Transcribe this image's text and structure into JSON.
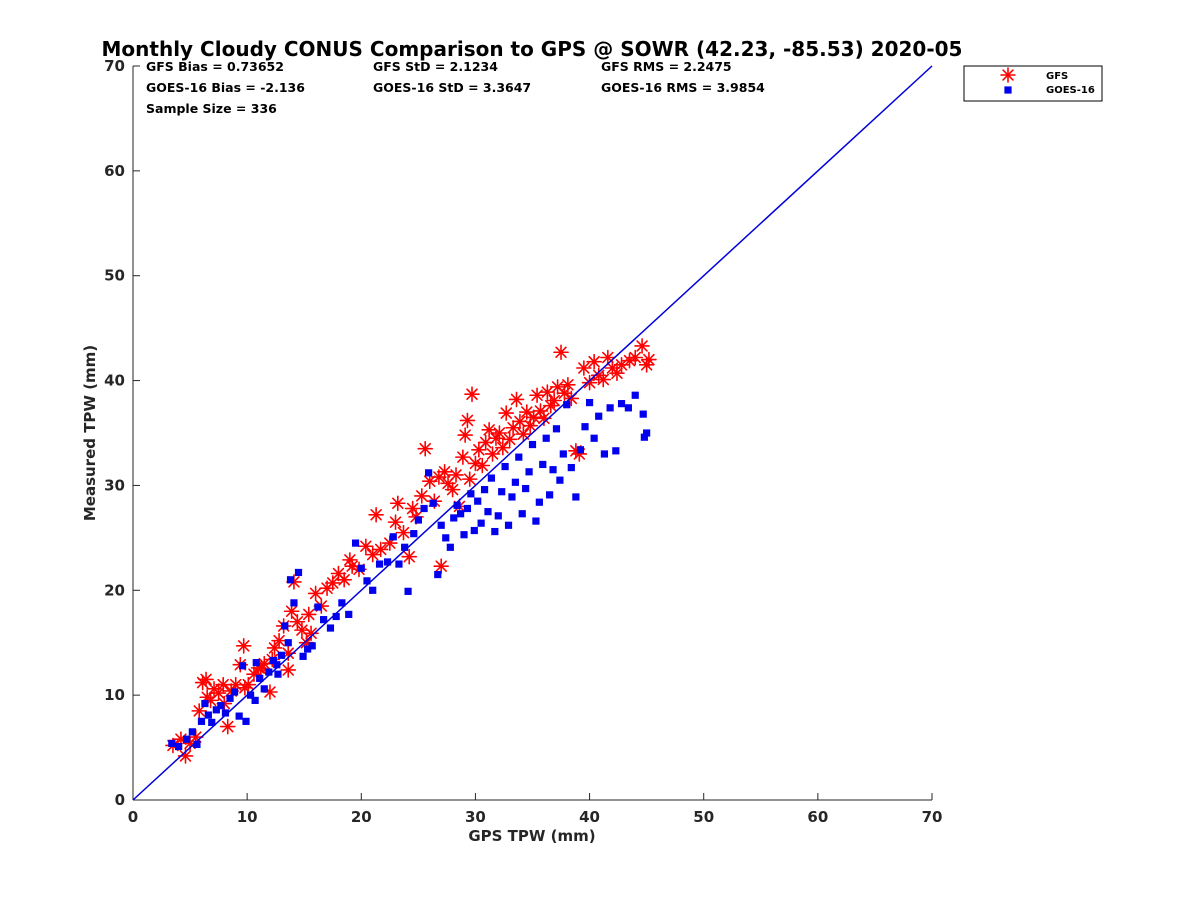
{
  "chart_data": {
    "type": "scatter",
    "title": "Monthly Cloudy CONUS Comparison to GPS @ SOWR (42.23, -85.53) 2020-05",
    "xlabel": "GPS TPW (mm)",
    "ylabel": "Measured TPW (mm)",
    "xlim": [
      0,
      70
    ],
    "ylim": [
      0,
      70
    ],
    "xticks": [
      "0",
      "10",
      "20",
      "30",
      "40",
      "50",
      "60",
      "70"
    ],
    "yticks": [
      "0",
      "10",
      "20",
      "30",
      "40",
      "50",
      "60",
      "70"
    ],
    "grid": false,
    "legend_position": "top-right, outside plot",
    "reference_line": {
      "x": [
        0,
        70
      ],
      "y": [
        0,
        70
      ],
      "color": "#0000dd"
    },
    "stats": {
      "gfs_bias": "GFS Bias = 0.73652",
      "gfs_std": "GFS StD = 2.1234",
      "gfs_rms": "GFS RMS = 2.2475",
      "goes_bias": "GOES-16 Bias = -2.136",
      "goes_std": "GOES-16 StD = 3.3647",
      "goes_rms": "GOES-16 RMS = 3.9854",
      "sample_size": "Sample Size = 336"
    },
    "series": [
      {
        "name": "GFS",
        "marker": "asterisk",
        "color": "#ff0000",
        "points": [
          [
            3.5,
            5.2
          ],
          [
            4.2,
            5.8
          ],
          [
            4.6,
            4.2
          ],
          [
            5.0,
            5.4
          ],
          [
            5.5,
            6.0
          ],
          [
            5.8,
            8.5
          ],
          [
            6.1,
            11.2
          ],
          [
            6.4,
            11.5
          ],
          [
            6.8,
            9.5
          ],
          [
            7.1,
            10.6
          ],
          [
            7.5,
            10.2
          ],
          [
            7.9,
            11.0
          ],
          [
            8.3,
            7.0
          ],
          [
            8.6,
            10.4
          ],
          [
            9.0,
            11.0
          ],
          [
            9.4,
            12.9
          ],
          [
            9.7,
            14.7
          ],
          [
            10.1,
            11.0
          ],
          [
            10.6,
            12.0
          ],
          [
            11.0,
            12.6
          ],
          [
            11.5,
            13.0
          ],
          [
            12.0,
            10.3
          ],
          [
            12.4,
            14.5
          ],
          [
            12.8,
            15.2
          ],
          [
            13.2,
            16.6
          ],
          [
            13.6,
            12.4
          ],
          [
            13.9,
            18.0
          ],
          [
            14.1,
            20.8
          ],
          [
            14.4,
            17.0
          ],
          [
            14.8,
            16.2
          ],
          [
            15.2,
            15.0
          ],
          [
            15.6,
            15.9
          ],
          [
            16.0,
            19.7
          ],
          [
            16.5,
            18.5
          ],
          [
            17.0,
            20.2
          ],
          [
            17.5,
            20.7
          ],
          [
            18.0,
            21.6
          ],
          [
            18.5,
            21.0
          ],
          [
            19.2,
            22.3
          ],
          [
            19.8,
            22.0
          ],
          [
            20.4,
            24.2
          ],
          [
            21.0,
            23.4
          ],
          [
            21.3,
            27.2
          ],
          [
            21.7,
            23.9
          ],
          [
            22.5,
            24.5
          ],
          [
            23.0,
            26.5
          ],
          [
            23.2,
            28.3
          ],
          [
            23.7,
            25.5
          ],
          [
            24.2,
            23.2
          ],
          [
            24.5,
            27.8
          ],
          [
            24.8,
            27.0
          ],
          [
            25.3,
            29.0
          ],
          [
            25.6,
            33.5
          ],
          [
            26.0,
            30.4
          ],
          [
            26.4,
            28.5
          ],
          [
            26.8,
            30.8
          ],
          [
            27.0,
            22.3
          ],
          [
            27.3,
            31.3
          ],
          [
            27.6,
            30.2
          ],
          [
            28.0,
            29.6
          ],
          [
            28.3,
            31.0
          ],
          [
            28.6,
            28.0
          ],
          [
            28.9,
            32.7
          ],
          [
            29.1,
            34.8
          ],
          [
            29.3,
            36.2
          ],
          [
            29.5,
            30.6
          ],
          [
            29.7,
            38.7
          ],
          [
            30.0,
            32.1
          ],
          [
            30.3,
            33.4
          ],
          [
            30.6,
            31.9
          ],
          [
            30.9,
            34.1
          ],
          [
            31.2,
            35.3
          ],
          [
            31.5,
            33.0
          ],
          [
            31.8,
            34.5
          ],
          [
            32.1,
            35.0
          ],
          [
            32.4,
            33.6
          ],
          [
            32.7,
            36.9
          ],
          [
            33.0,
            34.4
          ],
          [
            33.3,
            35.5
          ],
          [
            33.6,
            38.2
          ],
          [
            33.9,
            36.1
          ],
          [
            34.2,
            34.9
          ],
          [
            34.5,
            37.0
          ],
          [
            34.8,
            35.7
          ],
          [
            35.1,
            36.5
          ],
          [
            35.4,
            38.6
          ],
          [
            35.7,
            37.1
          ],
          [
            36.0,
            36.4
          ],
          [
            36.3,
            38.9
          ],
          [
            36.6,
            37.6
          ],
          [
            36.9,
            38.1
          ],
          [
            37.2,
            39.4
          ],
          [
            37.5,
            42.7
          ],
          [
            37.8,
            38.8
          ],
          [
            38.1,
            39.6
          ],
          [
            38.4,
            38.3
          ],
          [
            38.8,
            33.3
          ],
          [
            39.1,
            33.0
          ],
          [
            39.5,
            41.2
          ],
          [
            40.0,
            39.8
          ],
          [
            40.4,
            41.8
          ],
          [
            40.8,
            40.5
          ],
          [
            41.2,
            40.1
          ],
          [
            41.6,
            42.2
          ],
          [
            42.0,
            41.2
          ],
          [
            42.4,
            40.7
          ],
          [
            42.8,
            41.5
          ],
          [
            43.5,
            41.9
          ],
          [
            44.0,
            42.2
          ],
          [
            44.6,
            43.3
          ],
          [
            45.0,
            41.5
          ],
          [
            45.2,
            42.0
          ],
          [
            13.6,
            14.0
          ],
          [
            12.2,
            13.4
          ],
          [
            11.2,
            12.5
          ],
          [
            8.0,
            9.2
          ],
          [
            6.5,
            9.8
          ],
          [
            9.8,
            10.7
          ],
          [
            15.4,
            17.7
          ],
          [
            19.0,
            22.9
          ]
        ]
      },
      {
        "name": "GOES-16",
        "marker": "square",
        "color": "#0000ee",
        "points": [
          [
            3.4,
            5.4
          ],
          [
            4.0,
            5.1
          ],
          [
            4.7,
            5.8
          ],
          [
            5.2,
            6.5
          ],
          [
            5.6,
            5.3
          ],
          [
            6.0,
            7.5
          ],
          [
            6.3,
            9.2
          ],
          [
            6.6,
            8.1
          ],
          [
            6.9,
            7.4
          ],
          [
            7.3,
            8.6
          ],
          [
            7.7,
            9.0
          ],
          [
            8.1,
            8.3
          ],
          [
            8.5,
            9.7
          ],
          [
            8.9,
            10.3
          ],
          [
            9.3,
            8.0
          ],
          [
            9.6,
            12.8
          ],
          [
            9.9,
            7.5
          ],
          [
            10.3,
            10.0
          ],
          [
            10.7,
            9.5
          ],
          [
            11.1,
            11.6
          ],
          [
            11.5,
            10.6
          ],
          [
            11.9,
            12.2
          ],
          [
            12.3,
            13.3
          ],
          [
            12.7,
            12.0
          ],
          [
            13.0,
            13.8
          ],
          [
            13.3,
            16.6
          ],
          [
            13.6,
            15.0
          ],
          [
            13.8,
            21.0
          ],
          [
            14.1,
            18.8
          ],
          [
            14.5,
            21.7
          ],
          [
            14.9,
            13.7
          ],
          [
            15.3,
            14.4
          ],
          [
            15.7,
            14.7
          ],
          [
            16.2,
            18.4
          ],
          [
            16.7,
            17.2
          ],
          [
            17.3,
            16.4
          ],
          [
            17.8,
            17.5
          ],
          [
            18.3,
            18.8
          ],
          [
            18.9,
            17.7
          ],
          [
            19.5,
            24.5
          ],
          [
            20.0,
            22.1
          ],
          [
            20.5,
            20.9
          ],
          [
            21.0,
            20.0
          ],
          [
            21.6,
            22.5
          ],
          [
            22.3,
            22.7
          ],
          [
            22.8,
            25.1
          ],
          [
            23.3,
            22.5
          ],
          [
            23.8,
            24.1
          ],
          [
            24.1,
            19.9
          ],
          [
            24.6,
            25.4
          ],
          [
            25.0,
            26.7
          ],
          [
            25.5,
            27.8
          ],
          [
            25.9,
            31.2
          ],
          [
            26.3,
            28.3
          ],
          [
            26.7,
            21.5
          ],
          [
            27.0,
            26.2
          ],
          [
            27.4,
            25.0
          ],
          [
            27.8,
            24.1
          ],
          [
            28.1,
            26.9
          ],
          [
            28.4,
            28.1
          ],
          [
            28.7,
            27.3
          ],
          [
            29.0,
            25.3
          ],
          [
            29.3,
            27.8
          ],
          [
            29.6,
            29.2
          ],
          [
            29.9,
            25.7
          ],
          [
            30.2,
            28.5
          ],
          [
            30.5,
            26.4
          ],
          [
            30.8,
            29.6
          ],
          [
            31.1,
            27.5
          ],
          [
            31.4,
            30.7
          ],
          [
            31.7,
            25.6
          ],
          [
            32.0,
            27.1
          ],
          [
            32.3,
            29.4
          ],
          [
            32.6,
            31.8
          ],
          [
            32.9,
            26.2
          ],
          [
            33.2,
            28.9
          ],
          [
            33.5,
            30.3
          ],
          [
            33.8,
            32.7
          ],
          [
            34.1,
            27.3
          ],
          [
            34.4,
            29.7
          ],
          [
            34.7,
            31.3
          ],
          [
            35.0,
            33.9
          ],
          [
            35.3,
            26.6
          ],
          [
            35.6,
            28.4
          ],
          [
            35.9,
            32.0
          ],
          [
            36.2,
            34.5
          ],
          [
            36.5,
            29.1
          ],
          [
            36.8,
            31.5
          ],
          [
            37.1,
            35.4
          ],
          [
            37.4,
            30.5
          ],
          [
            37.7,
            33.0
          ],
          [
            38.0,
            37.7
          ],
          [
            38.4,
            31.7
          ],
          [
            38.8,
            28.9
          ],
          [
            39.2,
            33.4
          ],
          [
            39.6,
            35.6
          ],
          [
            40.0,
            37.9
          ],
          [
            40.4,
            34.5
          ],
          [
            40.8,
            36.6
          ],
          [
            41.3,
            33.0
          ],
          [
            41.8,
            37.4
          ],
          [
            42.3,
            33.3
          ],
          [
            42.8,
            37.8
          ],
          [
            43.4,
            37.4
          ],
          [
            44.0,
            38.6
          ],
          [
            44.7,
            36.8
          ],
          [
            45.0,
            35.0
          ],
          [
            44.8,
            34.6
          ],
          [
            12.6,
            12.9
          ],
          [
            10.8,
            13.1
          ]
        ]
      }
    ]
  }
}
